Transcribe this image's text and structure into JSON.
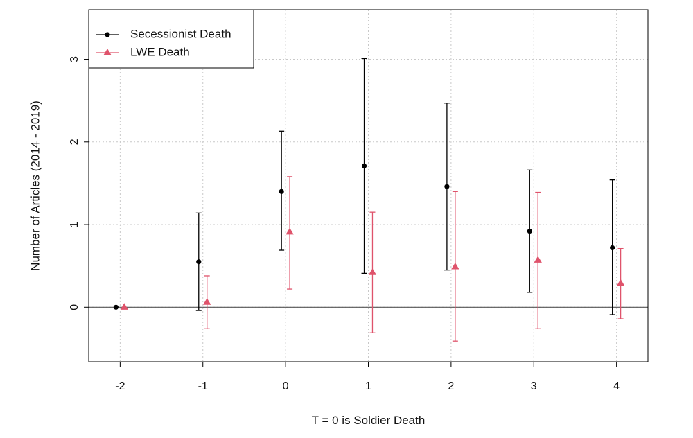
{
  "chart_data": {
    "type": "scatter",
    "title": "",
    "xlabel": "T = 0 is Soldier Death",
    "ylabel": "Number of Articles (2014 - 2019)",
    "x": [
      -2,
      -1,
      0,
      1,
      2,
      3,
      4
    ],
    "x_tick_labels": [
      "-2",
      "-1",
      "0",
      "1",
      "2",
      "3",
      "4"
    ],
    "y_ticks": [
      0,
      1,
      2,
      3
    ],
    "y_tick_labels": [
      "0",
      "1",
      "2",
      "3"
    ],
    "xlim": [
      -2.38,
      4.38
    ],
    "ylim": [
      -0.66,
      3.6
    ],
    "grid": true,
    "reference_line_y": 0,
    "legend_position": "top-left",
    "series": [
      {
        "name": "Secessionist Death",
        "color": "#000000",
        "marker": "circle",
        "offset": -0.05,
        "values": [
          0,
          0.55,
          1.4,
          1.71,
          1.46,
          0.92,
          0.72
        ],
        "lower": [
          0,
          -0.04,
          0.69,
          0.41,
          0.45,
          0.18,
          -0.09
        ],
        "upper": [
          0,
          1.14,
          2.13,
          3.01,
          2.47,
          1.66,
          1.54
        ]
      },
      {
        "name": "LWE Death",
        "color": "#DF536B",
        "marker": "triangle",
        "offset": 0.05,
        "values": [
          0,
          0.06,
          0.91,
          0.42,
          0.49,
          0.57,
          0.29
        ],
        "lower": [
          0,
          -0.26,
          0.22,
          -0.31,
          -0.41,
          -0.26,
          -0.14
        ],
        "upper": [
          0,
          0.38,
          1.58,
          1.15,
          1.4,
          1.39,
          0.71
        ]
      }
    ]
  }
}
